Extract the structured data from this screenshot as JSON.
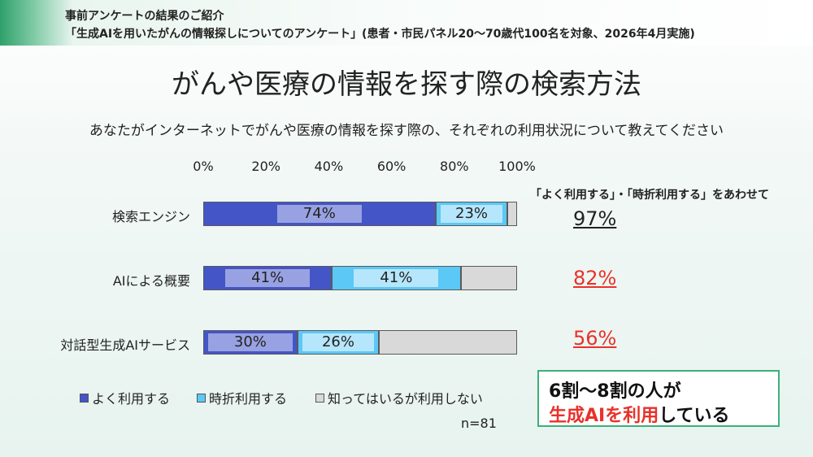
{
  "header": {
    "line1": "事前アンケートの結果のご紹介",
    "line2": "「生成AIを用いたがんの情報探しについてのアンケート」(患者・市民パネル20～70歳代100名を対象、2026年4月実施)"
  },
  "title": "がんや医療の情報を探す際の検索方法",
  "question": "あなたがインターネットでがんや医療の情報を探す際の、それぞれの利用状況について教えてください",
  "colors": {
    "often": "#4355c7",
    "sometimes": "#5bc8f5",
    "not_used": "#d9d9d9",
    "highlight_red": "#e8322a",
    "callout_border": "#3db07a"
  },
  "chart_data": {
    "type": "bar",
    "orientation": "horizontal-stacked-100",
    "xlim": [
      0,
      100
    ],
    "x_ticks": [
      "0%",
      "20%",
      "40%",
      "60%",
      "80%",
      "100%"
    ],
    "categories": [
      "検索エンジン",
      "AIによる概要",
      "対話型生成AIサービス"
    ],
    "series": [
      {
        "name": "よく利用する",
        "values": [
          74,
          41,
          30
        ],
        "labels": [
          "74%",
          "41%",
          "30%"
        ]
      },
      {
        "name": "時折利用する",
        "values": [
          23,
          41,
          26
        ],
        "labels": [
          "23%",
          "41%",
          "26%"
        ]
      },
      {
        "name": "知ってはいるが利用しない",
        "values": [
          3,
          18,
          44
        ]
      }
    ],
    "combined_note": "「よく利用する」・「時折利用する」をあわせて",
    "combined_totals": [
      "97%",
      "82%",
      "56%"
    ],
    "n_note": "n=81"
  },
  "callout": {
    "line1": "6割～8割の人が",
    "line2_highlight": "生成AIを利用",
    "line2_rest": "している"
  }
}
